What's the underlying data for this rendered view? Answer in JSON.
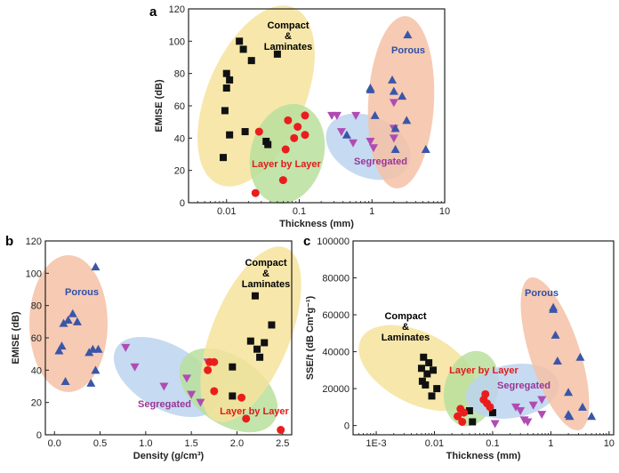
{
  "colors": {
    "compact": "#111111",
    "layer": "#ea1d1d",
    "segregated": "#b04bb4",
    "porous": "#3a56a8",
    "ellipse_yellow": "#f6e39b",
    "ellipse_green": "#b9df9c",
    "ellipse_blue": "#bcd3ee",
    "ellipse_orange": "#f4c1a6"
  },
  "chart_data": [
    {
      "panel": "a",
      "type": "scatter",
      "xlabel": "Thickness (mm)",
      "ylabel": "EMISE (dB)",
      "xscale": "log",
      "xlim": [
        0.003,
        10
      ],
      "ylim": [
        0,
        120
      ],
      "xticks": [
        0.01,
        0.1,
        1,
        10
      ],
      "xtick_labels": [
        "0.01",
        "0.1",
        "1",
        "10"
      ],
      "yticks": [
        0,
        20,
        40,
        60,
        80,
        100,
        120
      ],
      "ytick_labels": [
        "0",
        "20",
        "40",
        "60",
        "80",
        "100",
        "120"
      ],
      "group_labels": [
        {
          "lines": [
            "Compact",
            "&",
            "Laminates"
          ],
          "style": "black"
        },
        {
          "lines": [
            "Layer by Layer"
          ],
          "style": "red"
        },
        {
          "lines": [
            "Segregated"
          ],
          "style": "mag"
        },
        {
          "lines": [
            "Porous"
          ],
          "style": "blue"
        }
      ],
      "series": [
        {
          "marker": "square",
          "color": "compact",
          "points": [
            [
              0.009,
              28
            ],
            [
              0.0095,
              57
            ],
            [
              0.01,
              71
            ],
            [
              0.01,
              80
            ],
            [
              0.011,
              76
            ],
            [
              0.011,
              42
            ],
            [
              0.017,
              95
            ],
            [
              0.018,
              44
            ],
            [
              0.022,
              88
            ],
            [
              0.035,
              38
            ],
            [
              0.037,
              36
            ],
            [
              0.05,
              92
            ],
            [
              0.015,
              100
            ]
          ]
        },
        {
          "marker": "circle",
          "color": "layer",
          "points": [
            [
              0.025,
              6
            ],
            [
              0.028,
              44
            ],
            [
              0.06,
              14
            ],
            [
              0.065,
              33
            ],
            [
              0.07,
              51
            ],
            [
              0.085,
              40
            ],
            [
              0.095,
              47
            ],
            [
              0.12,
              54
            ],
            [
              0.12,
              42
            ]
          ]
        },
        {
          "marker": "tri-down",
          "color": "segregated",
          "points": [
            [
              0.28,
              54
            ],
            [
              0.33,
              54
            ],
            [
              0.38,
              44
            ],
            [
              0.55,
              37
            ],
            [
              0.6,
              54
            ],
            [
              0.95,
              38
            ],
            [
              1.05,
              34
            ],
            [
              2,
              62
            ],
            [
              2,
              46
            ],
            [
              2,
              40
            ]
          ]
        },
        {
          "marker": "tri-up",
          "color": "porous",
          "points": [
            [
              0.45,
              42
            ],
            [
              0.95,
              71
            ],
            [
              0.95,
              70
            ],
            [
              1.1,
              54
            ],
            [
              1.9,
              76
            ],
            [
              2,
              69
            ],
            [
              2.1,
              46
            ],
            [
              2.1,
              33
            ],
            [
              2.6,
              66
            ],
            [
              3.1,
              104
            ],
            [
              3.0,
              51
            ],
            [
              5.5,
              33
            ]
          ]
        }
      ]
    },
    {
      "panel": "b",
      "type": "scatter",
      "xlabel": "Density (g/cm³)",
      "ylabel": "EMISE (dB)",
      "xscale": "linear",
      "xlim": [
        -0.1,
        2.6
      ],
      "ylim": [
        0,
        120
      ],
      "xticks": [
        0.0,
        0.5,
        1.0,
        1.5,
        2.0,
        2.5
      ],
      "xtick_labels": [
        "0.0",
        "0.5",
        "1.0",
        "1.5",
        "2.0",
        "2.5"
      ],
      "yticks": [
        0,
        20,
        40,
        60,
        80,
        100,
        120
      ],
      "ytick_labels": [
        "0",
        "20",
        "40",
        "60",
        "80",
        "100",
        "120"
      ],
      "group_labels": [
        {
          "lines": [
            "Porous"
          ],
          "style": "blue"
        },
        {
          "lines": [
            "Compact",
            "&",
            "Laminates"
          ],
          "style": "black"
        },
        {
          "lines": [
            "Segregated"
          ],
          "style": "mag"
        },
        {
          "lines": [
            "Layer by Layer"
          ],
          "style": "red"
        }
      ],
      "series": [
        {
          "marker": "tri-up",
          "color": "porous",
          "points": [
            [
              0.05,
              52
            ],
            [
              0.08,
              55
            ],
            [
              0.1,
              69
            ],
            [
              0.12,
              33
            ],
            [
              0.15,
              71
            ],
            [
              0.2,
              75
            ],
            [
              0.25,
              70
            ],
            [
              0.4,
              32
            ],
            [
              0.45,
              104
            ],
            [
              0.45,
              40
            ],
            [
              0.38,
              51
            ],
            [
              0.42,
              53
            ],
            [
              0.48,
              53
            ]
          ]
        },
        {
          "marker": "tri-down",
          "color": "segregated",
          "points": [
            [
              0.78,
              54
            ],
            [
              0.88,
              42
            ],
            [
              1.2,
              30
            ],
            [
              1.45,
              35
            ],
            [
              1.5,
              25
            ],
            [
              1.6,
              20
            ],
            [
              1.68,
              45
            ]
          ]
        },
        {
          "marker": "circle",
          "color": "layer",
          "points": [
            [
              1.68,
              40
            ],
            [
              1.7,
              45
            ],
            [
              1.75,
              27
            ],
            [
              2.05,
              23
            ],
            [
              2.1,
              10
            ],
            [
              1.75,
              45
            ],
            [
              2.48,
              3
            ]
          ]
        },
        {
          "marker": "square",
          "color": "compact",
          "points": [
            [
              1.95,
              42
            ],
            [
              1.95,
              24
            ],
            [
              2.15,
              58
            ],
            [
              2.2,
              86
            ],
            [
              2.22,
              53
            ],
            [
              2.25,
              48
            ],
            [
              2.3,
              57
            ],
            [
              2.38,
              68
            ]
          ]
        }
      ]
    },
    {
      "panel": "c",
      "type": "scatter",
      "xlabel": "Thickness (mm)",
      "ylabel": "SSE/t (dB Cm²g⁻¹)",
      "xscale": "log",
      "xlim": [
        0.0004,
        12
      ],
      "ylim": [
        -5000,
        100000
      ],
      "xticks": [
        0.001,
        0.01,
        0.1,
        1,
        10
      ],
      "xtick_labels": [
        "1E-3",
        "0.01",
        "0.1",
        "1",
        "10"
      ],
      "yticks": [
        0,
        20000,
        40000,
        60000,
        80000,
        100000
      ],
      "ytick_labels": [
        "0",
        "20000",
        "40000",
        "60000",
        "80000",
        "100000"
      ],
      "group_labels": [
        {
          "lines": [
            "Compact",
            "&",
            "Laminates"
          ],
          "style": "black"
        },
        {
          "lines": [
            "Layer by Layer"
          ],
          "style": "red"
        },
        {
          "lines": [
            "Segregated"
          ],
          "style": "mag"
        },
        {
          "lines": [
            "Porous"
          ],
          "style": "blue"
        }
      ],
      "series": [
        {
          "marker": "square",
          "color": "compact",
          "points": [
            [
              0.006,
              31000
            ],
            [
              0.0062,
              24000
            ],
            [
              0.0065,
              37000
            ],
            [
              0.007,
              22000
            ],
            [
              0.0075,
              28000
            ],
            [
              0.008,
              34000
            ],
            [
              0.009,
              16000
            ],
            [
              0.0095,
              30000
            ],
            [
              0.011,
              20000
            ],
            [
              0.04,
              8000
            ],
            [
              0.045,
              2000
            ],
            [
              0.1,
              7000
            ]
          ]
        },
        {
          "marker": "circle",
          "color": "layer",
          "points": [
            [
              0.025,
              5000
            ],
            [
              0.028,
              9000
            ],
            [
              0.03,
              2000
            ],
            [
              0.032,
              7000
            ],
            [
              0.07,
              14000
            ],
            [
              0.075,
              17000
            ],
            [
              0.08,
              12000
            ],
            [
              0.09,
              10000
            ]
          ]
        },
        {
          "marker": "tri-down",
          "color": "segregated",
          "points": [
            [
              0.11,
              1000
            ],
            [
              0.25,
              10000
            ],
            [
              0.3,
              8000
            ],
            [
              0.35,
              3000
            ],
            [
              0.4,
              2000
            ],
            [
              0.5,
              11000
            ],
            [
              0.7,
              14000
            ],
            [
              0.7,
              6000
            ]
          ]
        },
        {
          "marker": "tri-up",
          "color": "porous",
          "points": [
            [
              1.1,
              64000
            ],
            [
              1.1,
              63000
            ],
            [
              1.2,
              49000
            ],
            [
              1.3,
              35000
            ],
            [
              2,
              18000
            ],
            [
              2,
              6000
            ],
            [
              2.1,
              5000
            ],
            [
              3.2,
              37000
            ],
            [
              3.5,
              10000
            ],
            [
              5,
              5000
            ]
          ]
        }
      ]
    }
  ]
}
